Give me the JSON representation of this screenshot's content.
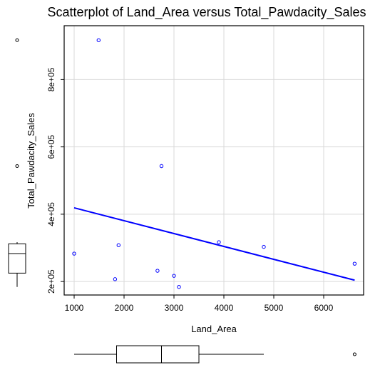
{
  "chart_data": {
    "type": "scatter",
    "title": "Scatterplot of Land_Area versus Total_Pawdacity_Sales",
    "xlabel": "Land_Area",
    "ylabel": "Total_Pawdacity_Sales",
    "xlim": [
      800,
      6800
    ],
    "ylim": [
      160000,
      960000
    ],
    "x_ticks": [
      1000,
      2000,
      3000,
      4000,
      5000,
      6000
    ],
    "x_tick_labels": [
      "1000",
      "2000",
      "3000",
      "4000",
      "5000",
      "6000"
    ],
    "y_ticks": [
      200000,
      400000,
      600000,
      800000
    ],
    "y_tick_labels": [
      "2e+05",
      "4e+05",
      "6e+05",
      "8e+05"
    ],
    "grid": true,
    "points": [
      {
        "x": 1000,
        "y": 283000
      },
      {
        "x": 1490,
        "y": 917000
      },
      {
        "x": 1820,
        "y": 207000
      },
      {
        "x": 1890,
        "y": 308000
      },
      {
        "x": 2670,
        "y": 232000
      },
      {
        "x": 2750,
        "y": 543000
      },
      {
        "x": 3000,
        "y": 217000
      },
      {
        "x": 3100,
        "y": 184000
      },
      {
        "x": 3900,
        "y": 317000
      },
      {
        "x": 4800,
        "y": 303000
      },
      {
        "x": 6620,
        "y": 253000
      }
    ],
    "trendline": {
      "x": [
        1000,
        6620
      ],
      "y": [
        419000,
        204000
      ]
    },
    "point_color": "#0000ff",
    "line_color": "#0000ff",
    "x_boxplot": {
      "min": 1000,
      "q1": 1850,
      "median": 2750,
      "q3": 3500,
      "max": 4800,
      "outliers": [
        6620
      ]
    },
    "y_boxplot": {
      "min": 184000,
      "q1": 225000,
      "median": 283000,
      "q3": 312000,
      "max": 317000,
      "outliers": [
        543000,
        917000
      ]
    }
  }
}
